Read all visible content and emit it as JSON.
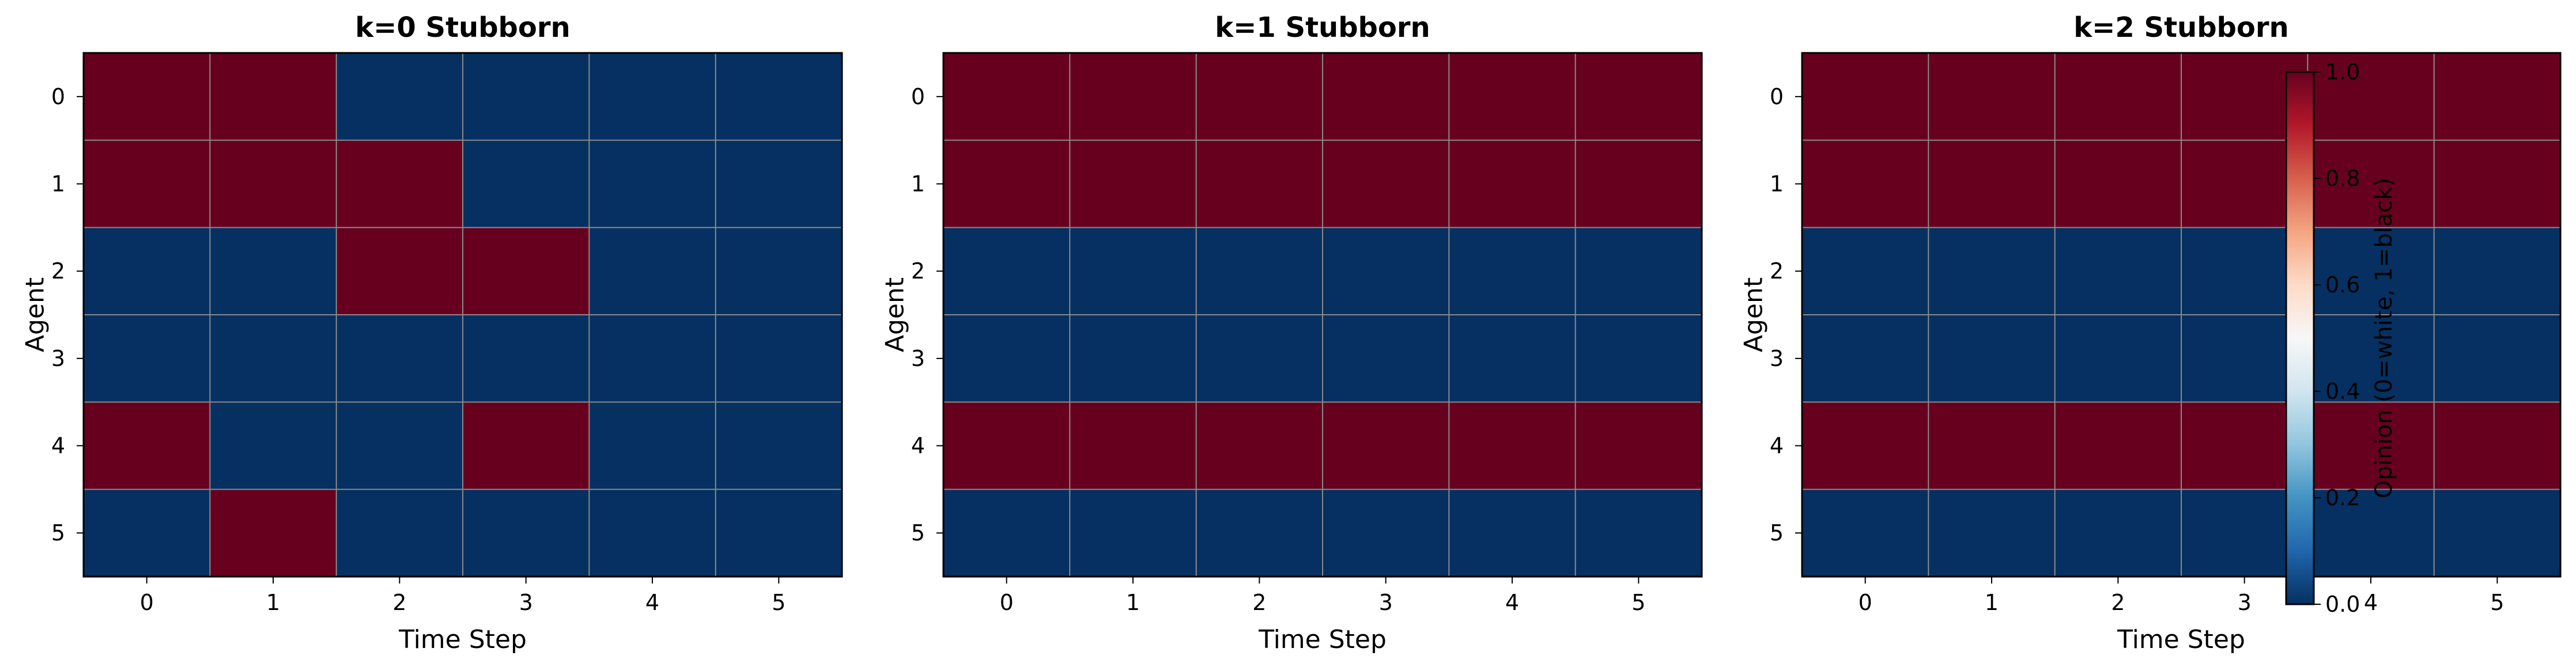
{
  "chart_data": [
    {
      "type": "heatmap",
      "title": "k=0 Stubborn",
      "xlabel": "Time Step",
      "ylabel": "Agent",
      "x_ticks": [
        "0",
        "1",
        "2",
        "3",
        "4",
        "5"
      ],
      "y_ticks": [
        "0",
        "1",
        "2",
        "3",
        "4",
        "5"
      ],
      "grid": true,
      "values": [
        [
          1,
          1,
          0,
          0,
          0,
          0
        ],
        [
          1,
          1,
          1,
          0,
          0,
          0
        ],
        [
          0,
          0,
          1,
          1,
          0,
          0
        ],
        [
          0,
          0,
          0,
          0,
          0,
          0
        ],
        [
          1,
          0,
          0,
          1,
          0,
          0
        ],
        [
          0,
          1,
          0,
          0,
          0,
          0
        ]
      ]
    },
    {
      "type": "heatmap",
      "title": "k=1 Stubborn",
      "xlabel": "Time Step",
      "ylabel": "Agent",
      "x_ticks": [
        "0",
        "1",
        "2",
        "3",
        "4",
        "5"
      ],
      "y_ticks": [
        "0",
        "1",
        "2",
        "3",
        "4",
        "5"
      ],
      "grid": true,
      "values": [
        [
          1,
          1,
          1,
          1,
          1,
          1
        ],
        [
          1,
          1,
          1,
          1,
          1,
          1
        ],
        [
          0,
          0,
          0,
          0,
          0,
          0
        ],
        [
          0,
          0,
          0,
          0,
          0,
          0
        ],
        [
          1,
          1,
          1,
          1,
          1,
          1
        ],
        [
          0,
          0,
          0,
          0,
          0,
          0
        ]
      ]
    },
    {
      "type": "heatmap",
      "title": "k=2 Stubborn",
      "xlabel": "Time Step",
      "ylabel": "Agent",
      "x_ticks": [
        "0",
        "1",
        "2",
        "3",
        "4",
        "5"
      ],
      "y_ticks": [
        "0",
        "1",
        "2",
        "3",
        "4",
        "5"
      ],
      "grid": true,
      "values": [
        [
          1,
          1,
          1,
          1,
          1,
          1
        ],
        [
          1,
          1,
          1,
          1,
          1,
          1
        ],
        [
          0,
          0,
          0,
          0,
          0,
          0
        ],
        [
          0,
          0,
          0,
          0,
          0,
          0
        ],
        [
          1,
          1,
          1,
          1,
          1,
          1
        ],
        [
          0,
          0,
          0,
          0,
          0,
          0
        ]
      ]
    }
  ],
  "colorbar": {
    "label": "Opinion (0=white, 1=black)",
    "range": [
      0,
      1
    ],
    "ticks": [
      "0.0",
      "0.2",
      "0.4",
      "0.6",
      "0.8",
      "1.0"
    ],
    "colormap": "RdBu_r",
    "low_color": "#053061",
    "mid_color": "#f7f7f7",
    "high_color": "#67001f"
  },
  "colors": {
    "opinion_0": "#053061",
    "opinion_1": "#67001f",
    "grid": "#8a8a8a"
  }
}
